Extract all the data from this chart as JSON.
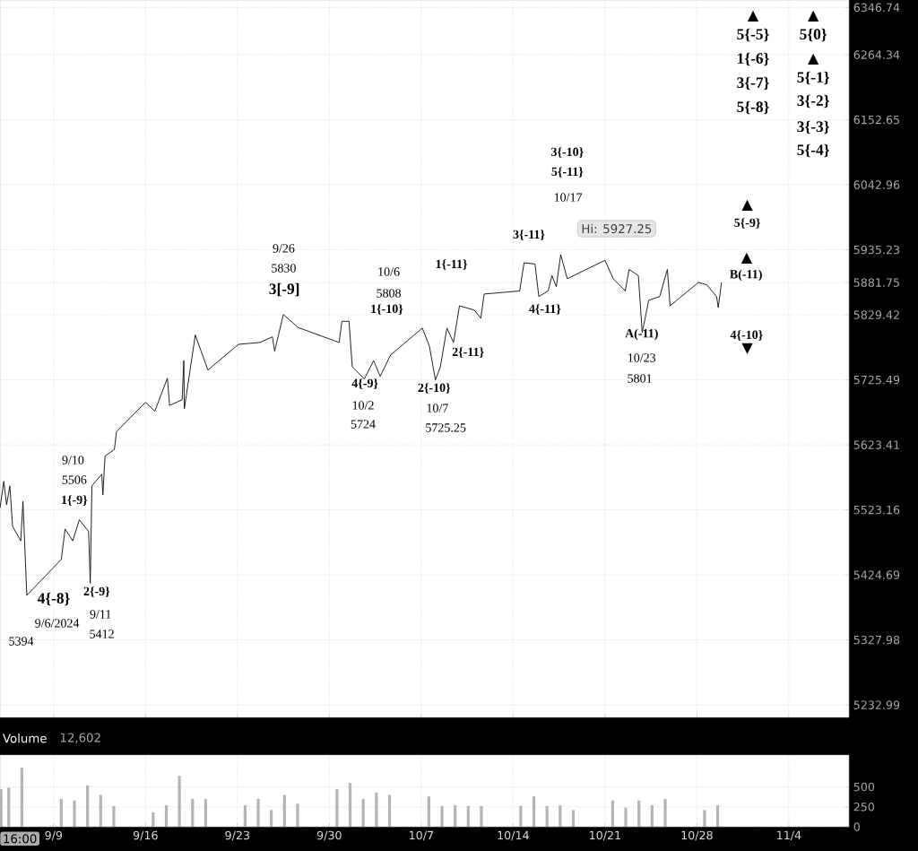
{
  "chart_data": [
    {
      "type": "line",
      "color": "#111111",
      "log": true,
      "grid": true,
      "tick_labels": "y",
      "x": [
        "2024-09-04T22:00",
        "2024-09-05T05:00",
        "2024-09-05T10:00",
        "2024-09-05T16:00",
        "2024-09-05T21:00",
        "2024-09-06T12:00",
        "2024-09-06T16:00",
        "2024-09-06T23:00",
        "2024-09-09T14:00",
        "2024-09-09T21:00",
        "2024-09-10T11:00",
        "2024-09-10T23:00",
        "2024-09-11T16:00",
        "2024-09-11T19:00",
        "2024-09-11T22:00",
        "2024-09-12T16:00",
        "2024-09-12T18:00",
        "2024-09-12T22:00",
        "2024-09-13T15:00",
        "2024-09-13T19:00",
        "2024-09-16T00:00",
        "2024-09-16T17:00",
        "2024-09-17T16:00",
        "2024-09-17T20:00",
        "2024-09-18T19:00",
        "2024-09-18T22:00",
        "2024-09-18T23:00",
        "2024-09-19T19:00",
        "2024-09-20T18:00",
        "2024-09-23T02:00",
        "2024-09-24T17:00",
        "2024-09-25T16:00",
        "2024-09-25T20:00",
        "2024-09-26T12:00",
        "2024-09-27T15:00",
        "2024-09-30T18:00",
        "2024-09-30T23:00",
        "2024-10-01T12:00",
        "2024-10-01T18:00",
        "2024-10-02T16:00",
        "2024-10-03T09:00",
        "2024-10-03T21:00",
        "2024-10-04T16:00",
        "2024-10-07T02:00",
        "2024-10-07T15:00",
        "2024-10-08T02:00",
        "2024-10-08T11:00",
        "2024-10-08T23:00",
        "2024-10-09T11:00",
        "2024-10-09T22:00",
        "2024-10-11T01:00",
        "2024-10-11T13:00",
        "2024-10-11T19:00",
        "2024-10-14T12:00",
        "2024-10-14T20:00",
        "2024-10-15T16:00",
        "2024-10-15T23:00",
        "2024-10-16T16:00",
        "2024-10-16T23:00",
        "2024-10-17T07:00",
        "2024-10-17T15:00",
        "2024-10-18T03:00",
        "2024-10-21T00:00",
        "2024-10-21T15:00",
        "2024-10-22T13:00",
        "2024-10-22T20:00",
        "2024-10-23T13:00",
        "2024-10-23T20:00",
        "2024-10-24T08:00",
        "2024-10-25T04:00",
        "2024-10-25T18:00",
        "2024-10-25T23:00",
        "2024-10-28T03:00",
        "2024-10-28T18:00",
        "2024-10-29T12:00",
        "2024-10-29T15:00",
        "2024-10-29T21:00"
      ],
      "values": [
        5526,
        5567,
        5531,
        5560,
        5498,
        5476,
        5536,
        5394,
        5448,
        5494,
        5476,
        5508,
        5490,
        5412,
        5560,
        5578,
        5546,
        5606,
        5616,
        5644,
        5690,
        5676,
        5728,
        5685,
        5694,
        5756,
        5680,
        5797,
        5741,
        5782,
        5785,
        5794,
        5771,
        5830,
        5809,
        5785,
        5819,
        5819,
        5746,
        5727,
        5756,
        5731,
        5765,
        5808,
        5779,
        5725.25,
        5746,
        5808,
        5785,
        5844,
        5837,
        5824,
        5863,
        5868,
        5914,
        5912,
        5859,
        5868,
        5893,
        5875,
        5927.25,
        5888,
        5918,
        5888,
        5868,
        5903,
        5893,
        5801,
        5853,
        5859,
        5903,
        5844,
        5882,
        5878,
        5859,
        5841,
        5881.75
      ],
      "xlim": [
        "2024-09-04T22:00",
        "2024-11-08T14:00"
      ],
      "xticks": [
        {
          "value": "2024-09-09",
          "label": null
        },
        {
          "value": "2024-09-16",
          "label": null
        },
        {
          "value": "2024-09-23",
          "label": null
        },
        {
          "value": "2024-09-30",
          "label": null
        },
        {
          "value": "2024-10-07",
          "label": null
        },
        {
          "value": "2024-10-14",
          "label": null
        },
        {
          "value": "2024-10-21",
          "label": null
        },
        {
          "value": "2024-10-28",
          "label": null
        },
        {
          "value": "2024-11-04",
          "label": null
        }
      ],
      "ylim": [
        5215,
        6360
      ],
      "yticks": [
        5232.99,
        5327.98,
        5424.69,
        5523.16,
        5623.41,
        5725.49,
        5829.42,
        5935.23,
        6042.96,
        6152.65,
        6264.34,
        6346.74,
        5881.75
      ],
      "annotations": [
        "9/10",
        "5506",
        "**1{-9}**",
        "**4{-8}**",
        "9/6/2024",
        "5394",
        "**2{-9}**",
        "9/11",
        "5412",
        "9/26",
        "5830",
        "**3[-9]**",
        "10/6",
        "5808",
        "**1{-10}**",
        "**1{-11}**",
        "**4{-9}**",
        "10/2",
        "5724",
        "**2{-10}**",
        "10/7",
        "5725.25",
        "**2{-11}**",
        "**3{-11}**",
        "**4{-11}**",
        "**3{-10}**",
        "**5{-11}**",
        "10/17",
        "**A(-11)**",
        "10/23",
        "5801",
        "▲",
        "**5{-9}**",
        "▲",
        "**B(-11)**",
        "**4{-10}**",
        "▼",
        "▲",
        "**5{-5}**",
        "**1{-6}**",
        "**3{-7}**",
        "**5{-8}**",
        "▲",
        "**5{0}**",
        "▲",
        "**5{-1}**",
        "**3{-2}**",
        "**3{-3}**",
        "**5{-4}**",
        "Hi: 5927.25"
      ]
    },
    {
      "type": "bar",
      "title": "Volume",
      "subtitle": "12,602",
      "color": "#b4b4b4",
      "grid": true,
      "x": [
        "2024-09-05T00:00",
        "2024-09-05T14:00",
        "2024-09-06T14:00",
        "2024-09-09T14:00",
        "2024-09-10T14:00",
        "2024-09-11T14:00",
        "2024-09-12T14:00",
        "2024-09-13T14:00",
        "2024-09-16T14:00",
        "2024-09-17T14:00",
        "2024-09-18T14:00",
        "2024-09-19T14:00",
        "2024-09-20T14:00",
        "2024-09-23T14:00",
        "2024-09-24T14:00",
        "2024-09-25T14:00",
        "2024-09-26T14:00",
        "2024-09-27T14:00",
        "2024-09-30T14:00",
        "2024-10-01T14:00",
        "2024-10-02T14:00",
        "2024-10-03T14:00",
        "2024-10-04T14:00",
        "2024-10-07T14:00",
        "2024-10-08T14:00",
        "2024-10-09T14:00",
        "2024-10-10T14:00",
        "2024-10-11T14:00",
        "2024-10-14T14:00",
        "2024-10-15T14:00",
        "2024-10-16T14:00",
        "2024-10-17T14:00",
        "2024-10-18T14:00",
        "2024-10-21T14:00",
        "2024-10-22T14:00",
        "2024-10-23T14:00",
        "2024-10-24T14:00",
        "2024-10-25T14:00",
        "2024-10-28T14:00",
        "2024-10-29T14:00"
      ],
      "values": [
        470,
        490,
        740,
        350,
        330,
        520,
        400,
        260,
        180,
        270,
        640,
        350,
        350,
        270,
        350,
        210,
        400,
        290,
        470,
        550,
        350,
        430,
        400,
        380,
        260,
        270,
        260,
        260,
        260,
        380,
        260,
        270,
        210,
        330,
        240,
        330,
        270,
        350,
        210,
        270
      ],
      "xlim": [
        "2024-09-04T22:00",
        "2024-11-08T14:00"
      ],
      "xticks": [
        {
          "value": "2024-09-09",
          "label": "9/9"
        },
        {
          "value": "2024-09-16",
          "label": "9/16"
        },
        {
          "value": "2024-09-23",
          "label": "9/23"
        },
        {
          "value": "2024-09-30",
          "label": "9/30"
        },
        {
          "value": "2024-10-07",
          "label": "10/7"
        },
        {
          "value": "2024-10-14",
          "label": "10/14"
        },
        {
          "value": "2024-10-21",
          "label": "10/21"
        },
        {
          "value": "2024-10-28",
          "label": "10/28"
        },
        {
          "value": "2024-11-04",
          "label": "11/4"
        }
      ],
      "ylim": [
        0,
        900
      ],
      "yticks": [
        0,
        250,
        500
      ],
      "annotations": [
        "16:00"
      ]
    }
  ]
}
